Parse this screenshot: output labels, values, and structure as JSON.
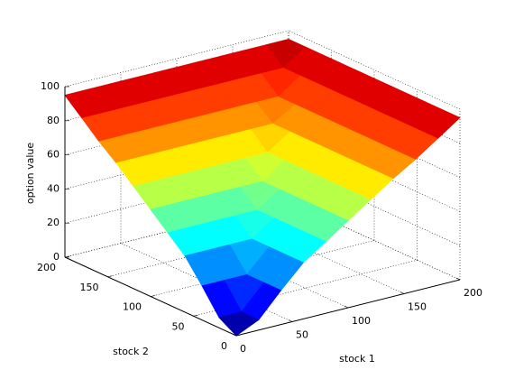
{
  "chart_data": {
    "type": "surface",
    "colormap": "jet",
    "grid": true,
    "xlabel": "stock 1",
    "ylabel": "stock 2",
    "zlabel": "option value",
    "x": [
      0,
      20,
      40,
      60,
      80,
      100,
      120,
      140,
      160,
      180,
      200
    ],
    "y": [
      0,
      20,
      40,
      60,
      80,
      100,
      120,
      140,
      160,
      180,
      200
    ],
    "z": [
      [
        0,
        6,
        20,
        33,
        42,
        51,
        60,
        69,
        77,
        86,
        95
      ],
      [
        6,
        6,
        20,
        33,
        42,
        51,
        60,
        69,
        77,
        86,
        95
      ],
      [
        20,
        20,
        20,
        33,
        42,
        51,
        60,
        69,
        77,
        86,
        95
      ],
      [
        33,
        33,
        33,
        33,
        42,
        51,
        60,
        69,
        77,
        86,
        95
      ],
      [
        42,
        42,
        42,
        42,
        42,
        51,
        60,
        69,
        77,
        86,
        95
      ],
      [
        51,
        51,
        51,
        51,
        51,
        51,
        60,
        69,
        77,
        86,
        95
      ],
      [
        60,
        60,
        60,
        60,
        60,
        60,
        60,
        69,
        77,
        86,
        95
      ],
      [
        69,
        69,
        69,
        69,
        69,
        69,
        69,
        69,
        77,
        86,
        95
      ],
      [
        77,
        77,
        77,
        77,
        77,
        77,
        77,
        77,
        77,
        86,
        95
      ],
      [
        86,
        86,
        86,
        86,
        86,
        86,
        86,
        86,
        86,
        86,
        95
      ],
      [
        95,
        95,
        95,
        95,
        95,
        95,
        95,
        95,
        95,
        95,
        95
      ]
    ],
    "xlim": [
      0,
      200
    ],
    "ylim": [
      0,
      200
    ],
    "zlim": [
      0,
      100
    ],
    "xticks": [
      0,
      50,
      100,
      150,
      200
    ],
    "yticks": [
      0,
      50,
      100,
      150,
      200
    ],
    "zticks": [
      0,
      20,
      40,
      60,
      80,
      100
    ]
  }
}
